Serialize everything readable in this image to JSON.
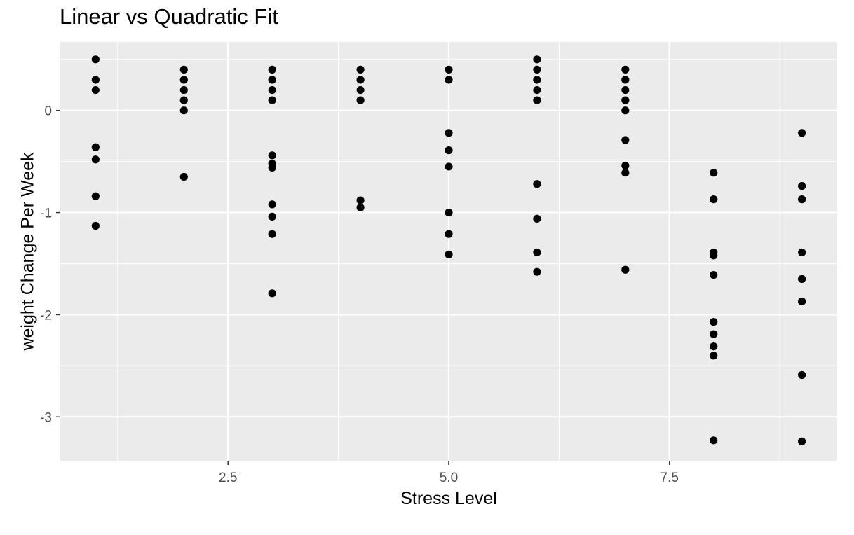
{
  "chart_data": {
    "type": "scatter",
    "title": "Linear vs Quadratic Fit",
    "xlabel": "Stress Level",
    "ylabel": "weight Change Per Week",
    "xlim": [
      0.6,
      9.4
    ],
    "ylim": [
      -3.43,
      0.67
    ],
    "x_ticks": [
      2.5,
      5.0,
      7.5
    ],
    "x_tick_labels": [
      "2.5",
      "5.0",
      "7.5"
    ],
    "y_ticks": [
      0,
      -1,
      -2,
      -3
    ],
    "y_tick_labels": [
      "0",
      "-1",
      "-2",
      "-3"
    ],
    "grid": true,
    "points": [
      {
        "x": 1,
        "y": 0.5
      },
      {
        "x": 1,
        "y": 0.3
      },
      {
        "x": 1,
        "y": 0.2
      },
      {
        "x": 1,
        "y": -0.36
      },
      {
        "x": 1,
        "y": -0.48
      },
      {
        "x": 1,
        "y": -0.84
      },
      {
        "x": 1,
        "y": -1.13
      },
      {
        "x": 2,
        "y": 0.4
      },
      {
        "x": 2,
        "y": 0.3
      },
      {
        "x": 2,
        "y": 0.2
      },
      {
        "x": 2,
        "y": 0.1
      },
      {
        "x": 2,
        "y": 0.0
      },
      {
        "x": 2,
        "y": -0.65
      },
      {
        "x": 3,
        "y": 0.4
      },
      {
        "x": 3,
        "y": 0.3
      },
      {
        "x": 3,
        "y": 0.2
      },
      {
        "x": 3,
        "y": 0.1
      },
      {
        "x": 3,
        "y": -0.44
      },
      {
        "x": 3,
        "y": -0.52
      },
      {
        "x": 3,
        "y": -0.56
      },
      {
        "x": 3,
        "y": -0.92
      },
      {
        "x": 3,
        "y": -1.04
      },
      {
        "x": 3,
        "y": -1.21
      },
      {
        "x": 3,
        "y": -1.79
      },
      {
        "x": 4,
        "y": 0.4
      },
      {
        "x": 4,
        "y": 0.3
      },
      {
        "x": 4,
        "y": 0.2
      },
      {
        "x": 4,
        "y": 0.1
      },
      {
        "x": 4,
        "y": -0.88
      },
      {
        "x": 4,
        "y": -0.95
      },
      {
        "x": 5,
        "y": 0.4
      },
      {
        "x": 5,
        "y": 0.3
      },
      {
        "x": 5,
        "y": -0.22
      },
      {
        "x": 5,
        "y": -0.39
      },
      {
        "x": 5,
        "y": -0.55
      },
      {
        "x": 5,
        "y": -1.0
      },
      {
        "x": 5,
        "y": -1.21
      },
      {
        "x": 5,
        "y": -1.41
      },
      {
        "x": 6,
        "y": 0.5
      },
      {
        "x": 6,
        "y": 0.4
      },
      {
        "x": 6,
        "y": 0.3
      },
      {
        "x": 6,
        "y": 0.2
      },
      {
        "x": 6,
        "y": 0.1
      },
      {
        "x": 6,
        "y": -0.72
      },
      {
        "x": 6,
        "y": -1.06
      },
      {
        "x": 6,
        "y": -1.39
      },
      {
        "x": 6,
        "y": -1.58
      },
      {
        "x": 7,
        "y": 0.4
      },
      {
        "x": 7,
        "y": 0.3
      },
      {
        "x": 7,
        "y": 0.2
      },
      {
        "x": 7,
        "y": 0.1
      },
      {
        "x": 7,
        "y": 0.0
      },
      {
        "x": 7,
        "y": -0.29
      },
      {
        "x": 7,
        "y": -0.54
      },
      {
        "x": 7,
        "y": -0.61
      },
      {
        "x": 7,
        "y": -1.56
      },
      {
        "x": 8,
        "y": -0.61
      },
      {
        "x": 8,
        "y": -0.87
      },
      {
        "x": 8,
        "y": -1.39
      },
      {
        "x": 8,
        "y": -1.42
      },
      {
        "x": 8,
        "y": -1.61
      },
      {
        "x": 8,
        "y": -2.07
      },
      {
        "x": 8,
        "y": -2.19
      },
      {
        "x": 8,
        "y": -2.31
      },
      {
        "x": 8,
        "y": -2.4
      },
      {
        "x": 8,
        "y": -3.23
      },
      {
        "x": 9,
        "y": -0.22
      },
      {
        "x": 9,
        "y": -0.74
      },
      {
        "x": 9,
        "y": -0.87
      },
      {
        "x": 9,
        "y": -1.39
      },
      {
        "x": 9,
        "y": -1.65
      },
      {
        "x": 9,
        "y": -1.87
      },
      {
        "x": 9,
        "y": -2.59
      },
      {
        "x": 9,
        "y": -3.24
      }
    ],
    "colors": {
      "panel": "#ebebeb",
      "grid": "#ffffff",
      "point": "#000000",
      "tick_text": "#4d4d4d"
    }
  }
}
